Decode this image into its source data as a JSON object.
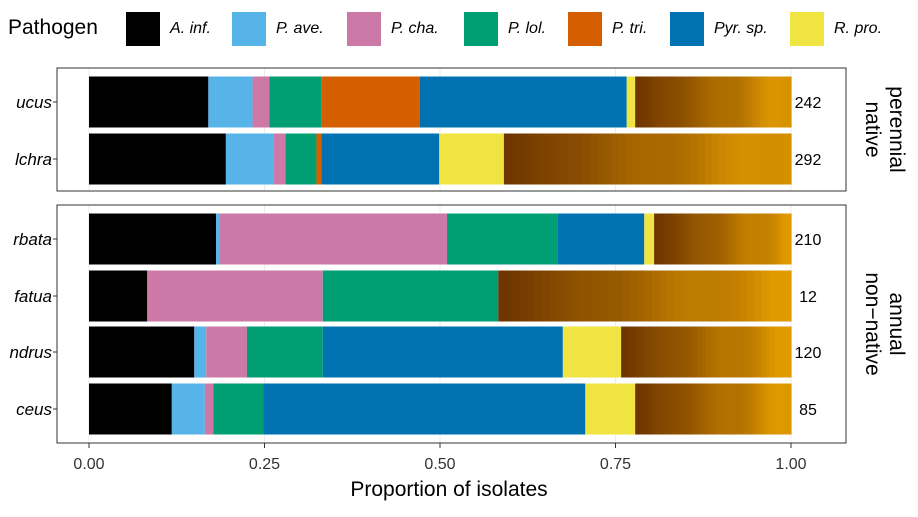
{
  "legend": {
    "title": "Pathogen",
    "items": [
      {
        "label": "A. inf.",
        "color": "#000000"
      },
      {
        "label": "P. ave.",
        "color": "#56B4E9"
      },
      {
        "label": "P. cha.",
        "color": "#CC79A7"
      },
      {
        "label": "P. lol.",
        "color": "#009E73"
      },
      {
        "label": "P. tri.",
        "color": "#D55E00"
      },
      {
        "label": "Pyr. sp.",
        "color": "#0072B2"
      },
      {
        "label": "R. pro.",
        "color": "#F0E442"
      }
    ]
  },
  "chart_data": {
    "type": "bar",
    "orientation": "horizontal",
    "stacked": true,
    "xlabel": "Proportion of isolates",
    "xlim": [
      0,
      1
    ],
    "xticks": [
      "0.00",
      "0.25",
      "0.50",
      "0.75",
      "1.00"
    ],
    "other_fill": {
      "dark": "#6E3500",
      "light": "#E09A00",
      "note": "remaining isolates shown as brown-to-orange gradient of fine stripes"
    },
    "panels": [
      {
        "facet_label": [
          "native",
          "perennial"
        ],
        "rows": [
          {
            "label": "ucus",
            "n": "242",
            "segments": [
              [
                "A. inf.",
                0.17
              ],
              [
                "P. ave.",
                0.063
              ],
              [
                "P. cha.",
                0.024
              ],
              [
                "P. lol.",
                0.074
              ],
              [
                "P. tri.",
                0.14
              ],
              [
                "Pyr. sp.",
                0.295
              ],
              [
                "R. pro.",
                0.012
              ],
              [
                "other",
                0.222
              ]
            ]
          },
          {
            "label": "lchra",
            "n": "292",
            "segments": [
              [
                "A. inf.",
                0.195
              ],
              [
                "P. ave.",
                0.068
              ],
              [
                "P. cha.",
                0.017
              ],
              [
                "P. lol.",
                0.044
              ],
              [
                "P. tri.",
                0.007
              ],
              [
                "Pyr. sp.",
                0.168
              ],
              [
                "R. pro.",
                0.092
              ],
              [
                "other",
                0.409
              ]
            ]
          }
        ]
      },
      {
        "facet_label": [
          "non−native",
          "annual"
        ],
        "rows": [
          {
            "label": "rbata",
            "n": "210",
            "segments": [
              [
                "A. inf.",
                0.181
              ],
              [
                "P. ave.",
                0.005
              ],
              [
                "P. cha.",
                0.324
              ],
              [
                "P. lol.",
                0.157
              ],
              [
                "P. tri.",
                0.0
              ],
              [
                "Pyr. sp.",
                0.124
              ],
              [
                "R. pro.",
                0.014
              ],
              [
                "other",
                0.195
              ]
            ]
          },
          {
            "label": "fatua",
            "n": "12",
            "segments": [
              [
                "A. inf.",
                0.083
              ],
              [
                "P. ave.",
                0.0
              ],
              [
                "P. cha.",
                0.25
              ],
              [
                "P. lol.",
                0.25
              ],
              [
                "P. tri.",
                0.0
              ],
              [
                "Pyr. sp.",
                0.0
              ],
              [
                "R. pro.",
                0.0
              ],
              [
                "other",
                0.417
              ]
            ]
          },
          {
            "label": "ndrus",
            "n": "120",
            "segments": [
              [
                "A. inf.",
                0.15
              ],
              [
                "P. ave.",
                0.017
              ],
              [
                "P. cha.",
                0.058
              ],
              [
                "P. lol.",
                0.108
              ],
              [
                "P. tri.",
                0.0
              ],
              [
                "Pyr. sp.",
                0.342
              ],
              [
                "R. pro.",
                0.083
              ],
              [
                "other",
                0.242
              ]
            ]
          },
          {
            "label": "ceus",
            "n": "85",
            "segments": [
              [
                "A. inf.",
                0.118
              ],
              [
                "P. ave.",
                0.047
              ],
              [
                "P. cha.",
                0.012
              ],
              [
                "P. lol.",
                0.071
              ],
              [
                "P. tri.",
                0.0
              ],
              [
                "Pyr. sp.",
                0.459
              ],
              [
                "R. pro.",
                0.071
              ],
              [
                "other",
                0.222
              ]
            ]
          }
        ]
      }
    ]
  }
}
